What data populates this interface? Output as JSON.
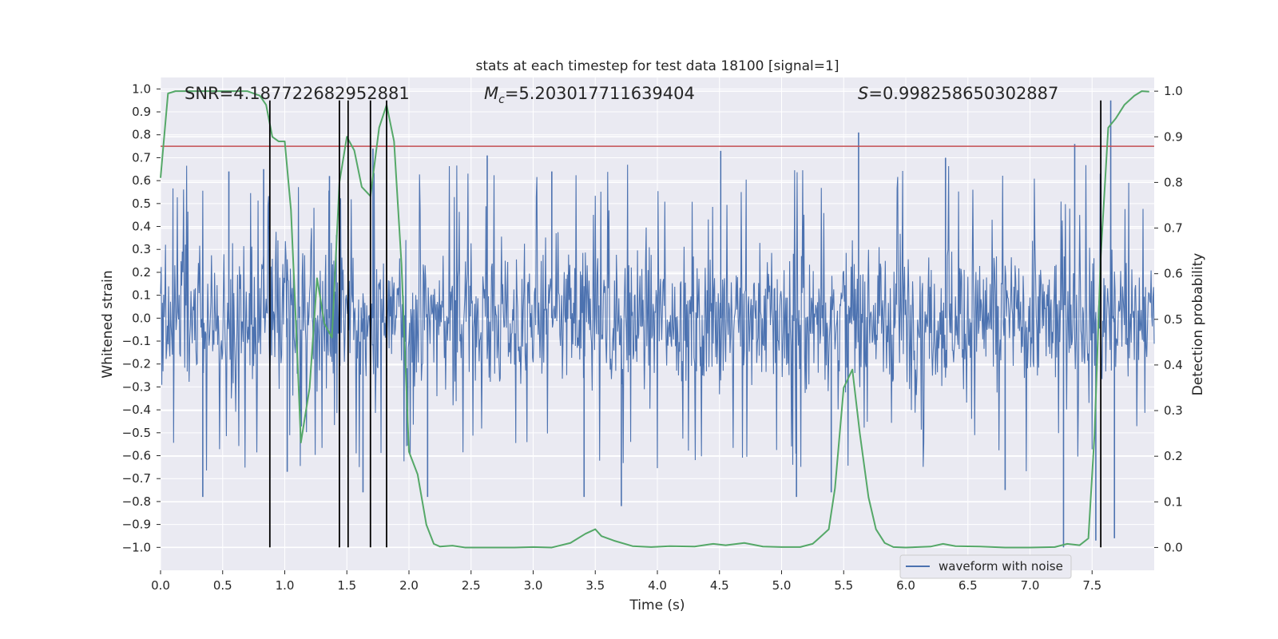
{
  "chart_data": {
    "type": "line",
    "title": "stats at each timestep for test data 18100 [signal=1]",
    "xlabel": "Time (s)",
    "ylabel_left": "Whitened strain",
    "ylabel_right": "Detection probability",
    "xlim": [
      0.0,
      8.0
    ],
    "ylim_left": [
      -1.1,
      1.05
    ],
    "ylim_right": [
      -0.05,
      1.03
    ],
    "x_ticks": [
      "0.0",
      "0.5",
      "1.0",
      "1.5",
      "2.0",
      "2.5",
      "3.0",
      "3.5",
      "4.0",
      "4.5",
      "5.0",
      "5.5",
      "6.0",
      "6.5",
      "7.0",
      "7.5"
    ],
    "x_tick_values": [
      0,
      0.5,
      1,
      1.5,
      2,
      2.5,
      3,
      3.5,
      4,
      4.5,
      5,
      5.5,
      6,
      6.5,
      7,
      7.5
    ],
    "y_left_ticks": [
      "1.0",
      "0.9",
      "0.8",
      "0.7",
      "0.6",
      "0.5",
      "0.4",
      "0.3",
      "0.2",
      "0.1",
      "0.0",
      "−0.1",
      "−0.2",
      "−0.3",
      "−0.4",
      "−0.5",
      "−0.6",
      "−0.7",
      "−0.8",
      "−0.9",
      "−1.0"
    ],
    "y_left_tick_values": [
      1.0,
      0.9,
      0.8,
      0.7,
      0.6,
      0.5,
      0.4,
      0.3,
      0.2,
      0.1,
      0.0,
      -0.1,
      -0.2,
      -0.3,
      -0.4,
      -0.5,
      -0.6,
      -0.7,
      -0.8,
      -0.9,
      -1.0
    ],
    "y_right_ticks": [
      "1.0",
      "0.9",
      "0.8",
      "0.7",
      "0.6",
      "0.5",
      "0.4",
      "0.3",
      "0.2",
      "0.1",
      "0.0"
    ],
    "y_right_tick_values": [
      1.0,
      0.9,
      0.8,
      0.7,
      0.6,
      0.5,
      0.4,
      0.3,
      0.2,
      0.1,
      0.0
    ],
    "annotations": {
      "snr": "SNR=4.187722682952881",
      "mc_symbol": "M",
      "mc_subscript": "c",
      "mc_value": "=5.203017711639404",
      "s_symbol": "S",
      "s_value": "=0.998258650302887"
    },
    "threshold": {
      "value": 0.75,
      "axis": "left",
      "color": "#c44e52"
    },
    "event_lines": {
      "x": [
        0.88,
        1.44,
        1.51,
        1.69,
        1.82,
        7.57
      ],
      "ymin": -1.0,
      "ymax": 0.95,
      "color": "#000000"
    },
    "waveform": {
      "name": "waveform with noise",
      "color": "#4c72b0",
      "typical_envelope": 0.35,
      "spikes": [
        {
          "x": 0.34,
          "y": -0.78
        },
        {
          "x": 0.55,
          "y": 0.64
        },
        {
          "x": 0.83,
          "y": 0.65
        },
        {
          "x": 1.02,
          "y": -0.67
        },
        {
          "x": 1.36,
          "y": 0.62
        },
        {
          "x": 1.63,
          "y": -0.76
        },
        {
          "x": 1.71,
          "y": 0.74
        },
        {
          "x": 2.15,
          "y": -0.78
        },
        {
          "x": 2.63,
          "y": 0.71
        },
        {
          "x": 3.15,
          "y": 0.64
        },
        {
          "x": 3.41,
          "y": -0.78
        },
        {
          "x": 3.71,
          "y": -0.82
        },
        {
          "x": 4.51,
          "y": 0.73
        },
        {
          "x": 5.12,
          "y": -0.78
        },
        {
          "x": 5.4,
          "y": -0.76
        },
        {
          "x": 5.62,
          "y": 0.81
        },
        {
          "x": 6.32,
          "y": 0.7
        },
        {
          "x": 6.8,
          "y": -0.75
        },
        {
          "x": 7.27,
          "y": -1.0
        },
        {
          "x": 7.36,
          "y": 0.76
        },
        {
          "x": 7.53,
          "y": -0.97
        },
        {
          "x": 7.65,
          "y": 0.95
        },
        {
          "x": 7.68,
          "y": -0.96
        }
      ]
    },
    "probability": {
      "name": "detection probability",
      "color": "#55a868",
      "axis": "right",
      "x": [
        0.0,
        0.06,
        0.12,
        0.2,
        0.3,
        0.4,
        0.5,
        0.6,
        0.7,
        0.8,
        0.85,
        0.9,
        0.95,
        1.0,
        1.05,
        1.1,
        1.13,
        1.2,
        1.26,
        1.32,
        1.38,
        1.44,
        1.5,
        1.56,
        1.62,
        1.69,
        1.76,
        1.82,
        1.88,
        1.94,
        2.0,
        2.07,
        2.14,
        2.2,
        2.25,
        2.35,
        2.45,
        2.55,
        2.7,
        2.85,
        3.0,
        3.15,
        3.3,
        3.42,
        3.5,
        3.55,
        3.65,
        3.8,
        3.95,
        4.1,
        4.3,
        4.45,
        4.55,
        4.7,
        4.85,
        5.0,
        5.15,
        5.25,
        5.3,
        5.38,
        5.43,
        5.5,
        5.57,
        5.63,
        5.7,
        5.76,
        5.83,
        5.9,
        6.0,
        6.2,
        6.3,
        6.4,
        6.6,
        6.8,
        7.0,
        7.2,
        7.3,
        7.4,
        7.47,
        7.52,
        7.57,
        7.63,
        7.69,
        7.76,
        7.84,
        7.9,
        7.96
      ],
      "y": [
        0.81,
        0.995,
        1.0,
        1.0,
        1.0,
        1.0,
        1.0,
        1.0,
        1.0,
        0.99,
        0.97,
        0.9,
        0.89,
        0.89,
        0.74,
        0.43,
        0.23,
        0.35,
        0.59,
        0.49,
        0.46,
        0.8,
        0.9,
        0.87,
        0.79,
        0.77,
        0.92,
        0.97,
        0.89,
        0.62,
        0.21,
        0.16,
        0.05,
        0.008,
        0.002,
        0.004,
        0.0,
        0.0,
        0.0,
        0.0,
        0.001,
        0.0,
        0.01,
        0.03,
        0.04,
        0.025,
        0.015,
        0.003,
        0.001,
        0.003,
        0.002,
        0.008,
        0.005,
        0.01,
        0.002,
        0.001,
        0.001,
        0.008,
        0.02,
        0.04,
        0.13,
        0.35,
        0.39,
        0.25,
        0.11,
        0.04,
        0.01,
        0.001,
        0.0,
        0.002,
        0.008,
        0.003,
        0.002,
        0.0,
        0.0,
        0.001,
        0.008,
        0.005,
        0.02,
        0.25,
        0.64,
        0.92,
        0.94,
        0.97,
        0.99,
        1.0,
        0.999
      ]
    },
    "legend": {
      "label": "waveform with noise",
      "position": "lower-right"
    },
    "grid": true
  }
}
